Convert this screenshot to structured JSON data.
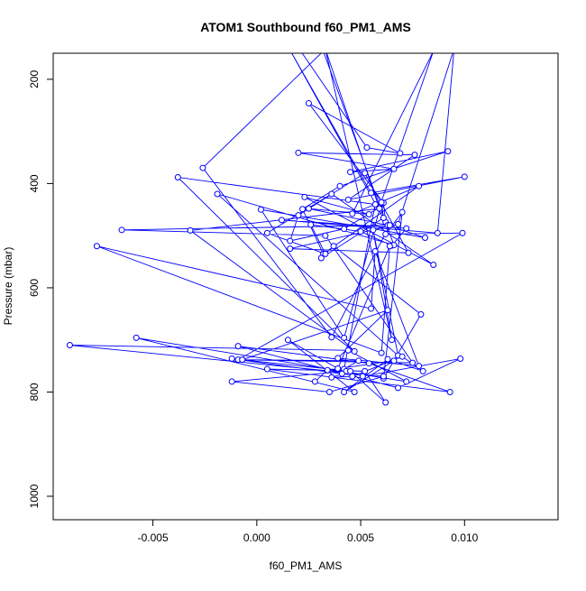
{
  "chart_data": {
    "type": "line",
    "title": "ATOM1 Southbound f60_PM1_AMS",
    "xlabel": "f60_PM1_AMS",
    "ylabel": "Pressure (mbar)",
    "xlim": [
      -0.0098,
      0.0145
    ],
    "ylim": [
      1045,
      150
    ],
    "y_reversed": true,
    "x_ticks": [
      -0.005,
      0.0,
      0.005,
      0.01
    ],
    "x_tick_labels": [
      "-0.005",
      "0.000",
      "0.005",
      "0.010"
    ],
    "y_ticks": [
      200,
      400,
      600,
      800,
      1000
    ],
    "y_tick_labels": [
      "200",
      "400",
      "600",
      "800",
      "1000"
    ],
    "grid": false,
    "marker": "open-circle",
    "color": "#0000ff",
    "series": [
      {
        "x": [
          0.0037,
          0.0108,
          0.0095,
          0.0118,
          0.0095,
          0.0072,
          0.0058,
          0.0021,
          0.0053,
          0.0069,
          0.0025,
          0.0061,
          0.0062,
          0.0016,
          0.0055,
          0.01,
          0.0044,
          0.0076,
          0.002,
          0.0066,
          0.0045,
          0.0092,
          0.004,
          0.0022,
          0.0032,
          0.0078,
          0.0046,
          0.0085,
          0.0059,
          0.0042,
          0.0016,
          0.002,
          0.0052,
          0.0073,
          0.0016,
          0.0068,
          0.0095,
          0.0087,
          0.0012,
          0.0072,
          0.0065,
          0.005,
          0.0026,
          0.0033,
          0.0005,
          0.0036,
          0.0085,
          0.0023,
          0.0054,
          0.0025,
          0.0063,
          0.0081,
          0.0002,
          0.0042,
          0.006,
          0.0061,
          0.0031,
          0.0037,
          0.0079,
          0.0061,
          0.007,
          0.0062,
          0.0099,
          -0.0009,
          0.0075,
          0.0033,
          -0.0065,
          0.0064,
          0.0036,
          -0.0026,
          0.0032,
          0.0066,
          -0.0019,
          0.0068,
          0.0056,
          0.0065,
          0.0033,
          0.0059,
          -0.0032,
          0.0047,
          -0.0038,
          0.0057,
          0.0042,
          0.0049,
          -0.0007,
          0.0063,
          0.0039,
          0.0078,
          0.0057,
          0.0055,
          -0.0077,
          0.006,
          0.0064,
          0.0039,
          0.0015,
          0.0047,
          -0.0058,
          0.0072,
          0.0044,
          -0.009,
          0.0061,
          0.0035,
          -0.0012,
          0.0043,
          0.0051,
          0.0098,
          0.0068,
          -0.0009,
          0.0054,
          0.0093,
          0.0005,
          0.0052,
          0.0062,
          0.0045,
          -0.0012,
          0.0041,
          0.0036,
          0.0046,
          0.007,
          0.008,
          0.0063,
          0.0042,
          0.0066,
          0.0034,
          0.0028
        ],
        "y": [
          146,
          140,
          145,
          140,
          144,
          146,
          144,
          145,
          331,
          342,
          246,
          437,
          474,
          144,
          418,
          387,
          431,
          345,
          341,
          372,
          378,
          338,
          405,
          449,
          535,
          405,
          458,
          146,
          446,
          487,
          510,
          461,
          380,
          533,
          525,
          478,
          141,
          495,
          470,
          486,
          519,
          492,
          479,
          535,
          495,
          420,
          556,
          426,
          459,
          448,
          480,
          504,
          450,
          696,
          436,
          466,
          543,
          520,
          651,
          774,
          455,
          497,
          495,
          738,
          744,
          500,
          489,
          480,
          695,
          370,
          146,
          518,
          420,
          730,
          489,
          700,
          142,
          448,
          490,
          722,
          388,
          440,
          756,
          740,
          738,
          643,
          735,
          750,
          530,
          640,
          520,
          725,
          520,
          755,
          700,
          800,
          696,
          780,
          720,
          710,
          770,
          800,
          780,
          760,
          770,
          736,
          792,
          712,
          745,
          800,
          756,
          760,
          820,
          760,
          736,
          765,
          772,
          770,
          732,
          760,
          737,
          800,
          740,
          758,
          780
        ]
      }
    ]
  }
}
